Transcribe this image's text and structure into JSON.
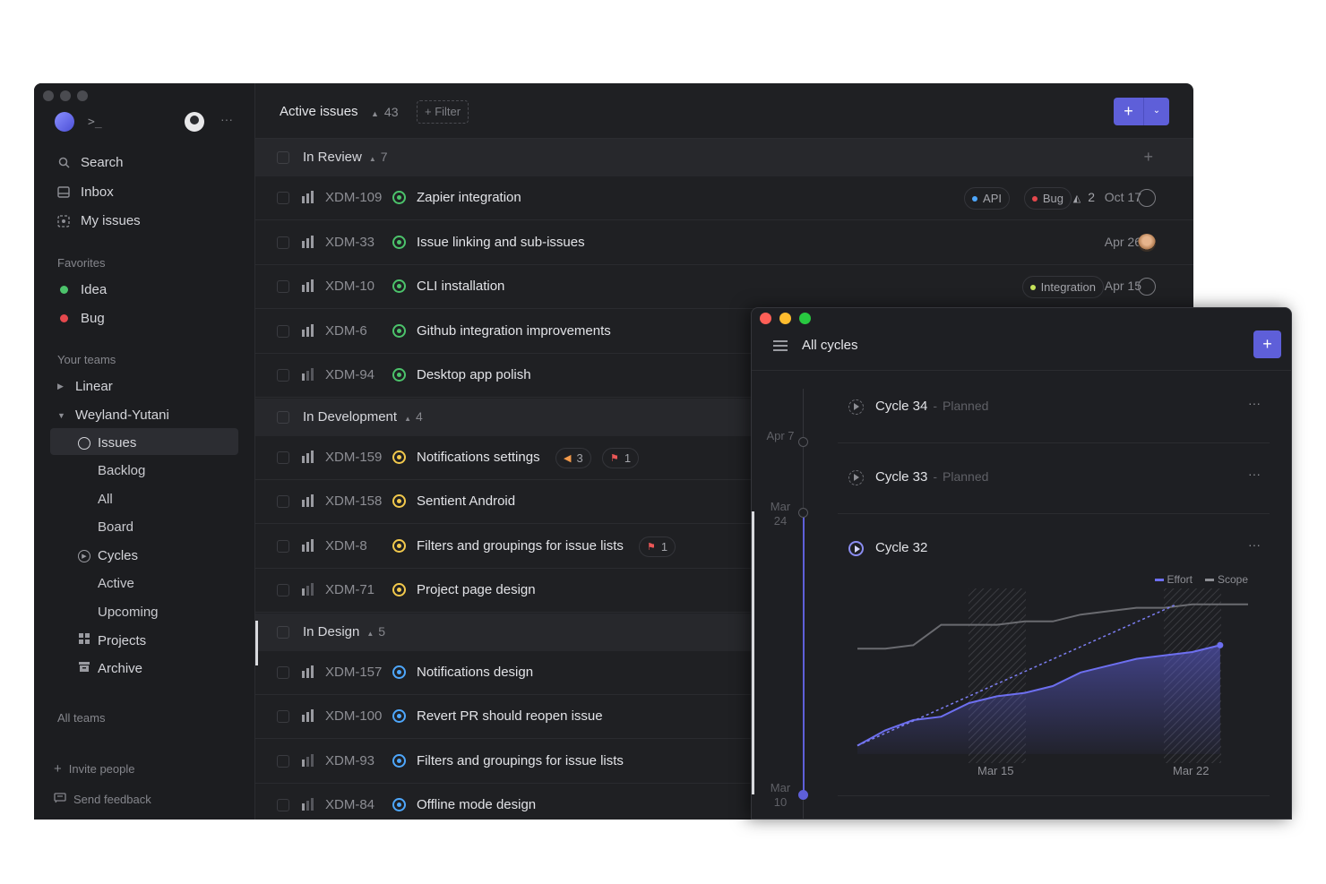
{
  "sidebar": {
    "prompt": ">_",
    "more": "···",
    "nav": [
      {
        "label": "Search",
        "icon": "search-icon"
      },
      {
        "label": "Inbox",
        "icon": "inbox-icon"
      },
      {
        "label": "My issues",
        "icon": "my-issues-icon"
      }
    ],
    "favorites_label": "Favorites",
    "favorites": [
      {
        "label": "Idea",
        "color": "#4cc36b"
      },
      {
        "label": "Bug",
        "color": "#e5484d"
      }
    ],
    "teams_label": "Your teams",
    "teams": [
      {
        "label": "Linear",
        "expanded": false
      },
      {
        "label": "Weyland-Yutani",
        "expanded": true
      }
    ],
    "team_items": {
      "issues": "Issues",
      "backlog": "Backlog",
      "all": "All",
      "board": "Board",
      "cycles": "Cycles",
      "active": "Active",
      "upcoming": "Upcoming",
      "projects": "Projects",
      "archive": "Archive"
    },
    "all_teams": "All teams",
    "invite": "Invite people",
    "feedback": "Send feedback"
  },
  "header": {
    "title": "Active issues",
    "count": "43",
    "filter": "+ Filter",
    "new_plus": "+",
    "new_chevron": "⌄"
  },
  "groups": [
    {
      "name": "In Review",
      "count": "7"
    },
    {
      "name": "In Development",
      "count": "4"
    },
    {
      "name": "In Design",
      "count": "5"
    }
  ],
  "rows": [
    {
      "id": "XDM-109",
      "title": "Zapier integration",
      "labels": [
        "API",
        "Bug"
      ],
      "sub": "2",
      "date": "Oct 17"
    },
    {
      "id": "XDM-33",
      "title": "Issue linking and sub-issues",
      "date": "Apr 26"
    },
    {
      "id": "XDM-10",
      "title": "CLI installation",
      "labels": [
        "Integration"
      ],
      "date": "Apr 15"
    },
    {
      "id": "XDM-6",
      "title": "Github integration improvements"
    },
    {
      "id": "XDM-94",
      "title": "Desktop app polish"
    },
    {
      "id": "XDM-159",
      "title": "Notifications settings",
      "badge1": "3",
      "badge2": "1"
    },
    {
      "id": "XDM-158",
      "title": "Sentient Android"
    },
    {
      "id": "XDM-8",
      "title": "Filters and groupings for issue lists",
      "badge2": "1"
    },
    {
      "id": "XDM-71",
      "title": "Project page design"
    },
    {
      "id": "XDM-157",
      "title": "Notifications design"
    },
    {
      "id": "XDM-100",
      "title": "Revert PR should reopen issue"
    },
    {
      "id": "XDM-93",
      "title": "Filters and groupings for issue lists"
    },
    {
      "id": "XDM-84",
      "title": "Offline mode design"
    }
  ],
  "colors": {
    "review": "#4cc36b",
    "development": "#f2c94c",
    "design": "#4ea7fc",
    "api": "#4ea7fc",
    "bug": "#e5484d",
    "integration": "#c6e35a",
    "accent": "#5e5fd9",
    "flag_orange": "#f2994a",
    "flag_red": "#eb5757"
  },
  "cycles_window": {
    "title": "All cycles",
    "plus": "+",
    "timeline": [
      "Apr 7",
      "Mar 24",
      "Mar 10"
    ],
    "cycles": [
      {
        "name": "Cycle 34",
        "sep": "-",
        "state": "Planned"
      },
      {
        "name": "Cycle 33",
        "sep": "-",
        "state": "Planned"
      },
      {
        "name": "Cycle 32",
        "sep": "",
        "state": ""
      }
    ],
    "more": "···",
    "legend": {
      "effort": "Effort",
      "scope": "Scope"
    },
    "xticks": [
      "Mar 15",
      "Mar 22"
    ]
  },
  "chart_data": {
    "type": "area",
    "title": "",
    "x": [
      0,
      1,
      2,
      3,
      4,
      5,
      6,
      7,
      8,
      9,
      10,
      11,
      12,
      13,
      14
    ],
    "series": [
      {
        "name": "Scope",
        "values": [
          62,
          62,
          64,
          76,
          76,
          76,
          78,
          78,
          82,
          84,
          86,
          86,
          88,
          88,
          88
        ]
      },
      {
        "name": "Effort",
        "values": [
          5,
          14,
          20,
          22,
          30,
          34,
          36,
          40,
          48,
          52,
          56,
          58,
          60,
          64,
          null
        ]
      }
    ],
    "xticks": [
      "Mar 15",
      "Mar 22"
    ],
    "ylim": [
      0,
      100
    ]
  }
}
